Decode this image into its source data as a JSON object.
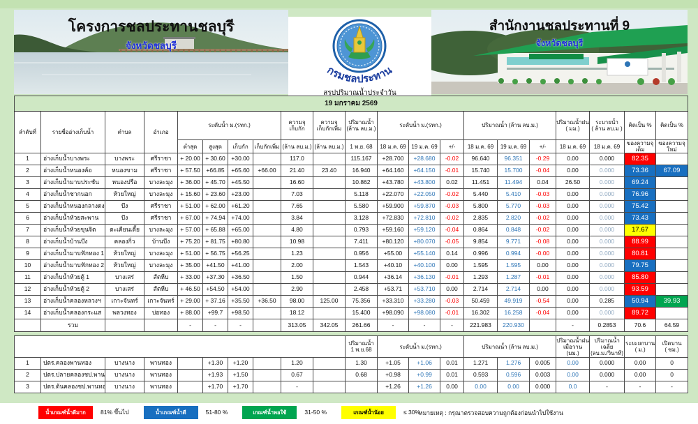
{
  "date": "19 มกราคม 2569",
  "left_banner": {
    "title": "โครงการชลประทานชลบุรี",
    "subtitle": "จังหวัดชลบุรี"
  },
  "right_banner": {
    "title": "สำนักงานชลประทานที่ 9",
    "subtitle": "จังหวัดชลบุรี"
  },
  "logo": {
    "label": "กรมชลประทาน",
    "caption": "สรุปปริมาณน้ำประจำวัน"
  },
  "headers": {
    "no": "ลำดับที่",
    "name": "รายชื่ออ่างเก็บน้ำ",
    "tambon": "ตำบล",
    "amphoe": "อำเภอ",
    "level_group": "ระดับน้ำ ม.(รทก.)",
    "lvl_min": "ต่ำสุด",
    "lvl_max": "สูงสุด",
    "lvl_norm": "เก็บกัก",
    "lvl_add": "เก็บกักเพิ่ม",
    "cap_top": "ความจุ\nเก็บกัก",
    "cap_add_top": "ความจุ\nเก็บกักเพิ่ม",
    "unit_mcm": "(ล้าน ลบ.ม.)",
    "vol_nov_top": "ปริมาณน้ำ\n(ล้าน ลบ.ม.)",
    "vol_nov_sub": "1 พ.ย. 68",
    "level2_group": "ระดับน้ำ  ม.(รทก.)",
    "vol_group": "ปริมาณน้ำ (ล้าน ลบ.ม.)",
    "d18": "18 ม.ค. 69",
    "d19": "19 ม.ค. 69",
    "diff": "+/-",
    "rain_top": "ปริมาณน้ำฝน\n( มม.)",
    "discharge_top": "ระบายน้ำ\n( ล้าน ลบ.ม )",
    "pct_top": "คิดเป็น %",
    "pct_full_sub": "ของความจุเต็ม",
    "pct_new_sub": "ของความจุใหม่"
  },
  "reservoirs": [
    {
      "no": "1",
      "name": "อ่างเก็บน้ำบางพระ",
      "tambon": "บางพระ",
      "amphoe": "ศรีราชา",
      "lvl_min": "+ 20.00",
      "lvl_max": "+ 30.60",
      "lvl_norm": "+30.00",
      "lvl_add": "",
      "cap": "117.0",
      "cap_add": "",
      "vol_nov": "115.167",
      "lvl18": "+28.700",
      "lvl19": "+28.680",
      "lvl_diff": "-0.02",
      "vol18": "96.640",
      "vol19": "96.351",
      "vol_diff": "-0.29",
      "rain": "0.00",
      "discharge": "0.000",
      "discharge_muted": false,
      "pct_full": "82.35",
      "pct_full_color": "red",
      "pct_new": "",
      "pct_new_color": ""
    },
    {
      "no": "2",
      "name": "อ่างเก็บน้ำหนองค้อ",
      "tambon": "หนองขาม",
      "amphoe": "ศรีราชา",
      "lvl_min": "+ 57.50",
      "lvl_max": "+66.85",
      "lvl_norm": "+65.60",
      "lvl_add": "+66.00",
      "cap": "21.40",
      "cap_add": "23.40",
      "vol_nov": "16.940",
      "lvl18": "+64.160",
      "lvl19": "+64.150",
      "lvl_diff": "-0.01",
      "vol18": "15.740",
      "vol19": "15.700",
      "vol_diff": "-0.04",
      "rain": "0.00",
      "discharge": "0.000",
      "discharge_muted": true,
      "pct_full": "73.36",
      "pct_full_color": "blue",
      "pct_new": "67.09",
      "pct_new_color": "blue"
    },
    {
      "no": "3",
      "name": "อ่างเก็บน้ำมาบประชัน",
      "tambon": "หนองปรือ",
      "amphoe": "บางละมุง",
      "lvl_min": "+ 36.00",
      "lvl_max": "+ 45.70",
      "lvl_norm": "+45.50",
      "lvl_add": "",
      "cap": "16.60",
      "cap_add": "",
      "vol_nov": "10.862",
      "lvl18": "+43.780",
      "lvl19": "+43.800",
      "lvl_diff": "0.02",
      "vol18": "11.451",
      "vol19": "11.494",
      "vol_diff": "0.04",
      "rain": "26.50",
      "discharge": "0.000",
      "discharge_muted": true,
      "pct_full": "69.24",
      "pct_full_color": "blue",
      "pct_new": "",
      "pct_new_color": ""
    },
    {
      "no": "4",
      "name": "อ่างเก็บน้ำชากนอก",
      "tambon": "ห้วยใหญ่",
      "amphoe": "บางละมุง",
      "lvl_min": "+ 15.60",
      "lvl_max": "+ 23.60",
      "lvl_norm": "+23.00",
      "lvl_add": "",
      "cap": "7.03",
      "cap_add": "",
      "vol_nov": "5.118",
      "lvl18": "+22.070",
      "lvl19": "+22.050",
      "lvl_diff": "-0.02",
      "vol18": "5.440",
      "vol19": "5.410",
      "vol_diff": "-0.03",
      "rain": "0.00",
      "discharge": "0.000",
      "discharge_muted": true,
      "pct_full": "76.96",
      "pct_full_color": "blue",
      "pct_new": "",
      "pct_new_color": ""
    },
    {
      "no": "5",
      "name": "อ่างเก็บน้ำหนองกลางดง",
      "tambon": "บึง",
      "amphoe": "ศรีราชา",
      "lvl_min": "+ 51.00",
      "lvl_max": "+ 62.00",
      "lvl_norm": "+61.20",
      "lvl_add": "",
      "cap": "7.65",
      "cap_add": "",
      "vol_nov": "5.580",
      "lvl18": "+59.900",
      "lvl19": "+59.870",
      "lvl_diff": "-0.03",
      "vol18": "5.800",
      "vol19": "5.770",
      "vol_diff": "-0.03",
      "rain": "0.00",
      "discharge": "0.000",
      "discharge_muted": true,
      "pct_full": "75.42",
      "pct_full_color": "blue",
      "pct_new": "",
      "pct_new_color": ""
    },
    {
      "no": "6",
      "name": "อ่างเก็บน้ำห้วยสะพาน",
      "tambon": "บึง",
      "amphoe": "ศรีราชา",
      "lvl_min": "+ 67.00",
      "lvl_max": "+ 74.94",
      "lvl_norm": "+74.00",
      "lvl_add": "",
      "cap": "3.84",
      "cap_add": "",
      "vol_nov": "3.128",
      "lvl18": "+72.830",
      "lvl19": "+72.810",
      "lvl_diff": "-0.02",
      "vol18": "2.835",
      "vol19": "2.820",
      "vol_diff": "-0.02",
      "rain": "0.00",
      "discharge": "0.000",
      "discharge_muted": true,
      "pct_full": "73.43",
      "pct_full_color": "blue",
      "pct_new": "",
      "pct_new_color": ""
    },
    {
      "no": "7",
      "name": "อ่างเก็บน้ำห้วยขุนจิต",
      "tambon": "ตะเคียนเตี้ย",
      "amphoe": "บางละมุง",
      "lvl_min": "+ 57.00",
      "lvl_max": "+ 65.88",
      "lvl_norm": "+65.00",
      "lvl_add": "",
      "cap": "4.80",
      "cap_add": "",
      "vol_nov": "0.793",
      "lvl18": "+59.160",
      "lvl19": "+59.120",
      "lvl_diff": "-0.04",
      "vol18": "0.864",
      "vol19": "0.848",
      "vol_diff": "-0.02",
      "rain": "0.00",
      "discharge": "0.000",
      "discharge_muted": true,
      "pct_full": "17.67",
      "pct_full_color": "yellow",
      "pct_new": "",
      "pct_new_color": ""
    },
    {
      "no": "8",
      "name": "อ่างเก็บน้ำบ้านบึง",
      "tambon": "คลองกิ่ว",
      "amphoe": "บ้านบึง",
      "lvl_min": "+ 75.20",
      "lvl_max": "+ 81.75",
      "lvl_norm": "+80.80",
      "lvl_add": "",
      "cap": "10.98",
      "cap_add": "",
      "vol_nov": "7.411",
      "lvl18": "+80.120",
      "lvl19": "+80.070",
      "lvl_diff": "-0.05",
      "vol18": "9.854",
      "vol19": "9.771",
      "vol_diff": "-0.08",
      "rain": "0.00",
      "discharge": "0.000",
      "discharge_muted": true,
      "pct_full": "88.99",
      "pct_full_color": "red",
      "pct_new": "",
      "pct_new_color": ""
    },
    {
      "no": "9",
      "name": "อ่างเก็บน้ำมาบฟักทอง 1",
      "tambon": "ห้วยใหญ่",
      "amphoe": "บางละมุง",
      "lvl_min": "+ 51.00",
      "lvl_max": "+ 56.75",
      "lvl_norm": "+56.25",
      "lvl_add": "",
      "cap": "1.23",
      "cap_add": "",
      "vol_nov": "0.956",
      "lvl18": "+55.00",
      "lvl19": "+55.140",
      "lvl_diff": "0.14",
      "vol18": "0.996",
      "vol19": "0.994",
      "vol_diff": "-0.00",
      "rain": "0.00",
      "discharge": "0.000",
      "discharge_muted": true,
      "pct_full": "80.81",
      "pct_full_color": "red",
      "pct_new": "",
      "pct_new_color": ""
    },
    {
      "no": "10",
      "name": "อ่างเก็บน้ำมาบฟักทอง 2",
      "tambon": "ห้วยใหญ่",
      "amphoe": "บางละมุง",
      "lvl_min": "+ 35.00",
      "lvl_max": "+41.50",
      "lvl_norm": "+41.00",
      "lvl_add": "",
      "cap": "2.00",
      "cap_add": "",
      "vol_nov": "1.543",
      "lvl18": "+40.10",
      "lvl19": "+40.100",
      "lvl_diff": "0.00",
      "vol18": "1.595",
      "vol19": "1.595",
      "vol_diff": "0.00",
      "rain": "0.00",
      "discharge": "0.000",
      "discharge_muted": true,
      "pct_full": "79.75",
      "pct_full_color": "blue",
      "pct_new": "",
      "pct_new_color": ""
    },
    {
      "no": "11",
      "name": "อ่างเก็บน้ำห้วยตู้ 1",
      "tambon": "บางเสร่",
      "amphoe": "สัตหีบ",
      "lvl_min": "+ 33.00",
      "lvl_max": "+37.30",
      "lvl_norm": "+36.50",
      "lvl_add": "",
      "cap": "1.50",
      "cap_add": "",
      "vol_nov": "0.944",
      "lvl18": "+36.14",
      "lvl19": "+36.130",
      "lvl_diff": "-0.01",
      "vol18": "1.293",
      "vol19": "1.287",
      "vol_diff": "-0.01",
      "rain": "0.00",
      "discharge": "0.000",
      "discharge_muted": true,
      "pct_full": "85.80",
      "pct_full_color": "red",
      "pct_new": "",
      "pct_new_color": ""
    },
    {
      "no": "12",
      "name": "อ่างเก็บน้ำห้วยตู้ 2",
      "tambon": "บางเสร่",
      "amphoe": "สัตหีบ",
      "lvl_min": "+ 46.50",
      "lvl_max": "+54.50",
      "lvl_norm": "+54.00",
      "lvl_add": "",
      "cap": "2.90",
      "cap_add": "",
      "vol_nov": "2.458",
      "lvl18": "+53.71",
      "lvl19": "+53.710",
      "lvl_diff": "0.00",
      "vol18": "2.714",
      "vol19": "2.714",
      "vol_diff": "0.00",
      "rain": "0.00",
      "discharge": "0.000",
      "discharge_muted": true,
      "pct_full": "93.59",
      "pct_full_color": "red",
      "pct_new": "",
      "pct_new_color": ""
    },
    {
      "no": "13",
      "name": "อ่างเก็บน้ำคลองหลวงฯ",
      "tambon": "เกาะจันทร์",
      "amphoe": "เกาะจันทร์",
      "lvl_min": "+ 29.00",
      "lvl_max": "+ 37.16",
      "lvl_norm": "+35.50",
      "lvl_add": "+36.50",
      "cap": "98.00",
      "cap_add": "125.00",
      "vol_nov": "75.356",
      "lvl18": "+33.310",
      "lvl19": "+33.280",
      "lvl_diff": "-0.03",
      "vol18": "50.459",
      "vol19": "49.919",
      "vol_diff": "-0.54",
      "rain": "0.00",
      "discharge": "0.285",
      "discharge_muted": false,
      "pct_full": "50.94",
      "pct_full_color": "blue",
      "pct_new": "39.93",
      "pct_new_color": "green"
    },
    {
      "no": "14",
      "name": "อ่างเก็บน้ำคลองกระแส",
      "tambon": "พลวงทอง",
      "amphoe": "บ่อทอง",
      "lvl_min": "+ 88.00",
      "lvl_max": "+99.7",
      "lvl_norm": "+98.50",
      "lvl_add": "",
      "cap": "18.12",
      "cap_add": "",
      "vol_nov": "15.400",
      "lvl18": "+98.090",
      "lvl19": "+98.080",
      "lvl_diff": "-0.01",
      "vol18": "16.302",
      "vol19": "16.258",
      "vol_diff": "-0.04",
      "rain": "0.00",
      "discharge": "0.000",
      "discharge_muted": true,
      "pct_full": "89.72",
      "pct_full_color": "red",
      "pct_new": "",
      "pct_new_color": ""
    }
  ],
  "total_row": {
    "no": "",
    "name": "รวม",
    "tambon": "",
    "amphoe": "",
    "lvl_min": "-",
    "lvl_max": "-",
    "lvl_norm": "-",
    "lvl_add": "",
    "cap": "313.05",
    "cap_add": "342.05",
    "vol_nov": "261.66",
    "lvl18": "-",
    "lvl19": "-",
    "lvl_diff": "-",
    "vol18": "221.983",
    "vol19": "220.930",
    "vol_diff": "",
    "rain": "-",
    "discharge": "0.2853",
    "pct_full": "70.6",
    "pct_new": "64.59"
  },
  "gates_headers": {
    "vol_nov": "ปริมาณน้ำ\n1 พ.ย.68",
    "level_group": "ระดับน้ำ  ม.(รทก.)",
    "vol_group": "ปริมาณน้ำ (ล้าน ลบ.ม.)",
    "rain": "ปริมาณน้ำฝน\nเมื่อวาน (มม.)",
    "avg_flow": "ปริมาณน้ำเฉลี่ย\n(ลบ.ม./วินาที)",
    "gate_lift": "ระยะยกบาน\n( ม.)",
    "gate_open": "เปิดบาน\n( ซม.)"
  },
  "gates": [
    {
      "no": "1",
      "name": "ปตร.คลองพานทอง",
      "tambon": "บางนาง",
      "amphoe": "พานทอง",
      "lvl_min": "",
      "lvl_max": "+1.30",
      "lvl_norm": "+1.20",
      "lvl_add": "",
      "cap": "1.20",
      "cap_add": "",
      "vol_nov": "1.30",
      "lvl18": "+1.05",
      "lvl19": "+1.06",
      "lvl_diff": "0.01",
      "vol18": "1.271",
      "vol19": "1.276",
      "vol_diff": "0.005",
      "rain": "0.00",
      "avg_flow": "0.000",
      "gate_lift": "0.00",
      "gate_open": "0",
      "vol18_blue": false
    },
    {
      "no": "2",
      "name": "ปตร.ปลายคลองชป.พานทอง",
      "tambon": "บางนาง",
      "amphoe": "พานทอง",
      "lvl_min": "",
      "lvl_max": "+1.93",
      "lvl_norm": "+1.50",
      "lvl_add": "",
      "cap": "0.67",
      "cap_add": "",
      "vol_nov": "0.68",
      "lvl18": "+0.98",
      "lvl19": "+0.99",
      "lvl_diff": "0.01",
      "vol18": "0.593",
      "vol19": "0.596",
      "vol_diff": "0.003",
      "rain": "0.00",
      "avg_flow": "0.000",
      "gate_lift": "0.00",
      "gate_open": "0",
      "vol18_blue": false
    },
    {
      "no": "3",
      "name": "ปตร.ต้นคลองชป.พานทอง",
      "tambon": "บางนาง",
      "amphoe": "พานทอง",
      "lvl_min": "",
      "lvl_max": "+1.70",
      "lvl_norm": "+1.70",
      "lvl_add": "",
      "cap": "-",
      "cap_add": "",
      "vol_nov": "",
      "lvl18": "+1.26",
      "lvl19": "+1.26",
      "lvl_diff": "0.00",
      "vol18": "0.00",
      "vol19": "0.00",
      "vol_diff": "0.000",
      "rain": "0.0",
      "avg_flow": "-",
      "gate_lift": "-",
      "gate_open": "-",
      "vol18_blue": true
    }
  ],
  "legend": [
    {
      "label": "น้ำเกณฑ์น้ำดีมาก",
      "range": "81% ขึ้นไป",
      "color": "#ff0000",
      "text_color": "#ffffff"
    },
    {
      "label": "น้ำเกณฑ์น้ำดี",
      "range": "51-80 %",
      "color": "#186fc0",
      "text_color": "#ffffff"
    },
    {
      "label": "เกณฑ์น้ำพอใช้",
      "range": "31-50 %",
      "color": "#00a550",
      "text_color": "#ffffff"
    },
    {
      "label": "เกณฑ์น้ำน้อย",
      "range": "≤ 30%",
      "color": "#ffff00",
      "text_color": "#000000"
    }
  ],
  "note": "หมายเหตุ : กรุณาตรวจสอบความถูกต้องก่อนนำไปใช้งาน",
  "colors": {
    "page_bg": "#cfe8c4",
    "good_very": "#ff0000",
    "good": "#186fc0",
    "fair": "#00a550",
    "low": "#ffff00",
    "value_blue": "#2e75b6",
    "negative_red": "#fe0000"
  }
}
